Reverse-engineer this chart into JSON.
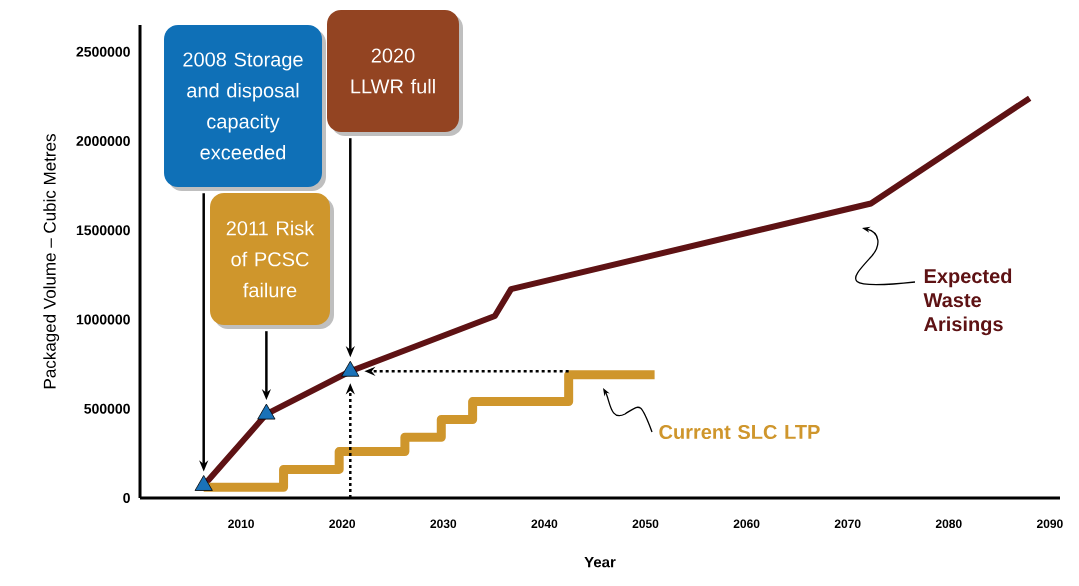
{
  "chart_data": {
    "type": "line",
    "xlabel": "Year",
    "ylabel": "Packaged Volume – Cubic Metres",
    "xlim": [
      2000,
      2091
    ],
    "ylim": [
      0,
      2650000
    ],
    "xticks": [
      2010,
      2020,
      2030,
      2040,
      2050,
      2060,
      2070,
      2080,
      2090
    ],
    "yticks": [
      0,
      500000,
      1000000,
      1500000,
      2000000,
      2500000
    ],
    "grid": false,
    "series": [
      {
        "name": "Expected Waste Arisings",
        "color": "#5e1214",
        "x": [
          2006.3,
          2012.5,
          2020.8,
          2035.1,
          2036.7,
          2072.3,
          2088
        ],
        "values": [
          70000,
          470000,
          710000,
          1020000,
          1170000,
          1650000,
          2240000
        ]
      },
      {
        "name": "Current SLC LTP",
        "type": "step",
        "color": "#cf962c",
        "x": [
          2006.3,
          2014.2,
          2019.7,
          2026.2,
          2029.8,
          2032.9,
          2042.4,
          2050.9
        ],
        "values": [
          60000,
          160000,
          260000,
          340000,
          440000,
          540000,
          690000,
          690000
        ]
      },
      {
        "type": "scatter",
        "marker": "triangle",
        "color": "#1a72b8",
        "x": [
          2006.3,
          2012.5,
          2020.8
        ],
        "values": [
          70000,
          470000,
          710000
        ]
      }
    ],
    "annotations": [
      "2008 Storage and disposal capacity exceeded",
      "2011 Risk of PCSC failure",
      "2020 LLWR full"
    ]
  }
}
